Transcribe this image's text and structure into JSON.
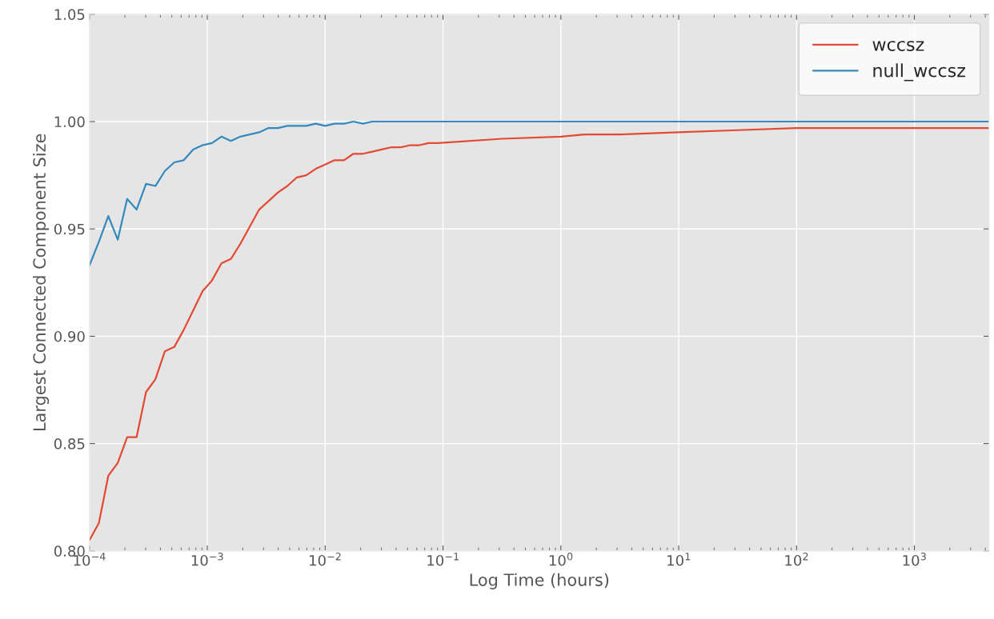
{
  "chart_data": {
    "type": "line",
    "xlabel": "Log Time (hours)",
    "ylabel": "Largest Connected Component Size",
    "log": "x",
    "grid": true,
    "legend": "top right",
    "xlim": [
      0.0001,
      4300
    ],
    "ylim": [
      0.8,
      1.05
    ],
    "xticks": [
      {
        "value": 0.0001,
        "label": "10$^{−4}$"
      },
      {
        "value": 0.001,
        "label": "10$^{−3}$"
      },
      {
        "value": 0.01,
        "label": "10$^{−2}$"
      },
      {
        "value": 0.1,
        "label": "10$^{−1}$"
      },
      {
        "value": 1,
        "label": "10$^{0}$"
      },
      {
        "value": 10,
        "label": "10$^{1}$"
      },
      {
        "value": 100,
        "label": "10$^{2}$"
      },
      {
        "value": 1000,
        "label": "10$^{3}$"
      }
    ],
    "yticks": [
      {
        "value": 0.8,
        "label": "0.80"
      },
      {
        "value": 0.85,
        "label": "0.85"
      },
      {
        "value": 0.9,
        "label": "0.90"
      },
      {
        "value": 0.95,
        "label": "0.95"
      },
      {
        "value": 1.0,
        "label": "1.00"
      },
      {
        "value": 1.05,
        "label": "1.05"
      }
    ],
    "series": [
      {
        "name": "wccsz",
        "color": "#e24a33",
        "x": [
          0.0001,
          0.0001202,
          0.0001445,
          0.0001738,
          0.0002089,
          0.0002512,
          0.000302,
          0.0003631,
          0.0004365,
          0.0005248,
          0.000631,
          0.0007586,
          0.000912,
          0.001096,
          0.001318,
          0.001585,
          0.001905,
          0.002291,
          0.002754,
          0.003311,
          0.003981,
          0.004786,
          0.005754,
          0.006918,
          0.008318,
          0.01,
          0.01202,
          0.01445,
          0.01738,
          0.02089,
          0.02512,
          0.0302,
          0.03631,
          0.04365,
          0.05248,
          0.0631,
          0.07586,
          0.0912,
          0.316,
          1,
          1.585,
          3.162,
          10,
          31.62,
          100,
          4300
        ],
        "values": [
          0.805,
          0.813,
          0.835,
          0.841,
          0.853,
          0.853,
          0.874,
          0.88,
          0.893,
          0.895,
          0.903,
          0.912,
          0.921,
          0.926,
          0.934,
          0.936,
          0.943,
          0.951,
          0.959,
          0.963,
          0.967,
          0.97,
          0.974,
          0.975,
          0.978,
          0.98,
          0.982,
          0.982,
          0.985,
          0.985,
          0.986,
          0.987,
          0.988,
          0.988,
          0.989,
          0.989,
          0.99,
          0.99,
          0.992,
          0.993,
          0.994,
          0.994,
          0.995,
          0.996,
          0.997,
          0.997
        ]
      },
      {
        "name": "null_wccsz",
        "color": "#348abd",
        "x": [
          0.0001,
          0.0001202,
          0.0001445,
          0.0001738,
          0.0002089,
          0.0002512,
          0.000302,
          0.0003631,
          0.0004365,
          0.0005248,
          0.000631,
          0.0007586,
          0.000912,
          0.001096,
          0.001318,
          0.001585,
          0.001905,
          0.002291,
          0.002754,
          0.003311,
          0.003981,
          0.004786,
          0.005754,
          0.006918,
          0.008318,
          0.01,
          0.01202,
          0.01445,
          0.01738,
          0.02089,
          0.02512,
          0.1,
          4300
        ],
        "values": [
          0.933,
          0.944,
          0.956,
          0.945,
          0.964,
          0.959,
          0.971,
          0.97,
          0.977,
          0.981,
          0.982,
          0.987,
          0.989,
          0.99,
          0.993,
          0.991,
          0.993,
          0.994,
          0.995,
          0.997,
          0.997,
          0.998,
          0.998,
          0.998,
          0.999,
          0.998,
          0.999,
          0.999,
          1.0,
          0.999,
          1.0,
          1.0,
          1.0
        ]
      }
    ]
  }
}
